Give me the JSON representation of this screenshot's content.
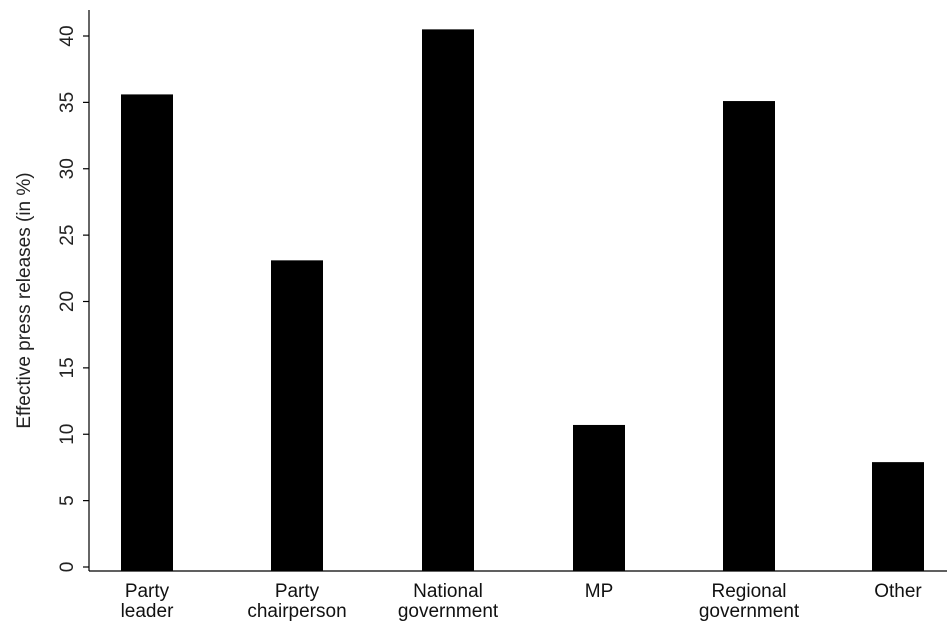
{
  "chart_data": {
    "type": "bar",
    "categories": [
      [
        "Party",
        "leader"
      ],
      [
        "Party",
        "chairperson"
      ],
      [
        "National",
        "government"
      ],
      [
        "MP"
      ],
      [
        "Regional",
        "government"
      ],
      [
        "Other"
      ]
    ],
    "values": [
      35.6,
      23.1,
      40.5,
      10.7,
      35.1,
      7.9
    ],
    "title": "",
    "xlabel": "",
    "ylabel": "Effective press releases (in %)",
    "ylim": [
      0,
      42
    ],
    "yticks": [
      0,
      5,
      10,
      15,
      20,
      25,
      30,
      35,
      40
    ],
    "yticklabels": [
      "0",
      "5",
      "10",
      "15",
      "20",
      "25",
      "30",
      "35",
      "40"
    ],
    "grid": false,
    "legend": "none",
    "bar_color": "#000000"
  }
}
